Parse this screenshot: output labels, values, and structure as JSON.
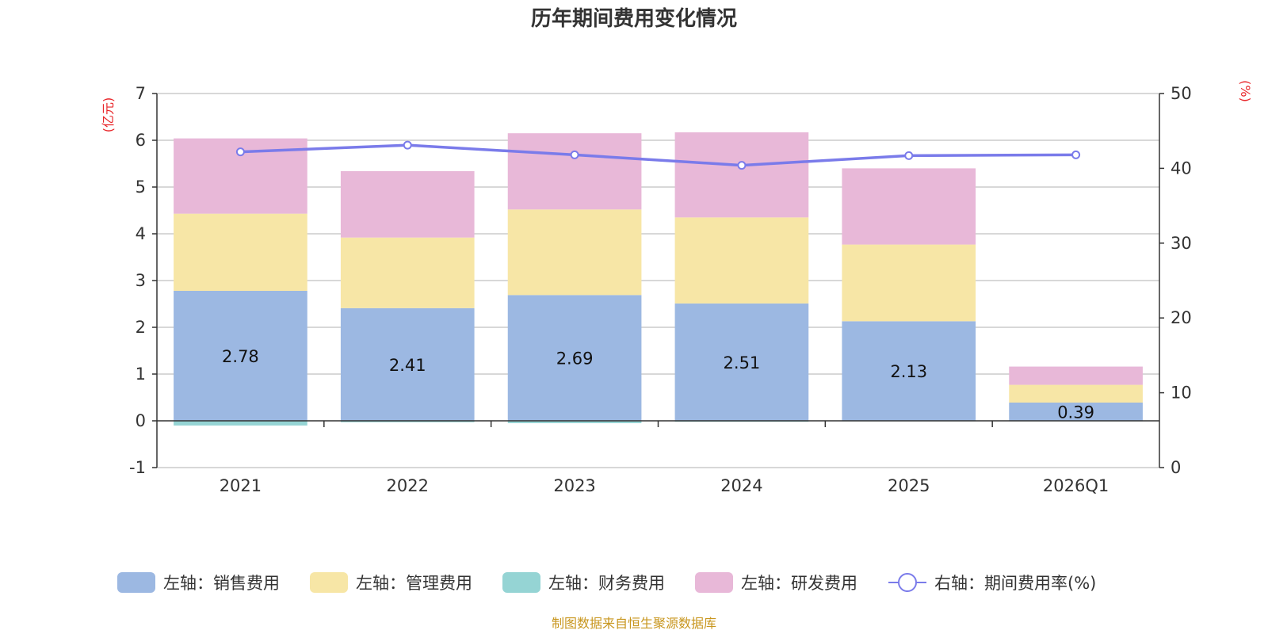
{
  "chart_data": {
    "type": "bar",
    "title": "历年期间费用变化情况",
    "categories": [
      "2021",
      "2022",
      "2023",
      "2024",
      "2025",
      "2026Q1"
    ],
    "left_axis": {
      "unit": "(亿元)",
      "ylim": [
        -1,
        7
      ],
      "ticks": [
        -1,
        0,
        1,
        2,
        3,
        4,
        5,
        6,
        7
      ]
    },
    "right_axis": {
      "unit": "(%)",
      "ylim": [
        0,
        50
      ],
      "ticks": [
        0,
        10,
        20,
        30,
        40,
        50
      ]
    },
    "series": [
      {
        "name": "左轴：销售费用",
        "kind": "bar",
        "axis": "left",
        "color": "#9cb8e2",
        "values": [
          2.78,
          2.41,
          2.69,
          2.51,
          2.13,
          0.39
        ],
        "labels": [
          "2.78",
          "2.41",
          "2.69",
          "2.51",
          "2.13",
          "0.39"
        ]
      },
      {
        "name": "左轴：管理费用",
        "kind": "bar",
        "axis": "left",
        "color": "#f7e6a6",
        "values": [
          1.65,
          1.51,
          1.83,
          1.84,
          1.64,
          0.38
        ]
      },
      {
        "name": "左轴：财务费用",
        "kind": "bar",
        "axis": "left",
        "color": "#95d4d4",
        "values": [
          -0.1,
          -0.03,
          -0.05,
          -0.02,
          -0.01,
          -0.01
        ]
      },
      {
        "name": "左轴：研发费用",
        "kind": "bar",
        "axis": "left",
        "color": "#e8b8d8",
        "values": [
          1.61,
          1.42,
          1.63,
          1.82,
          1.63,
          0.39
        ]
      },
      {
        "name": "右轴：期间费用率(%)",
        "kind": "line",
        "axis": "right",
        "color": "#7a7bea",
        "values": [
          42.2,
          43.1,
          41.8,
          40.4,
          41.7,
          41.8
        ]
      }
    ],
    "legend_position": "bottom",
    "grid": true
  },
  "source_note": "制图数据来自恒生聚源数据库"
}
